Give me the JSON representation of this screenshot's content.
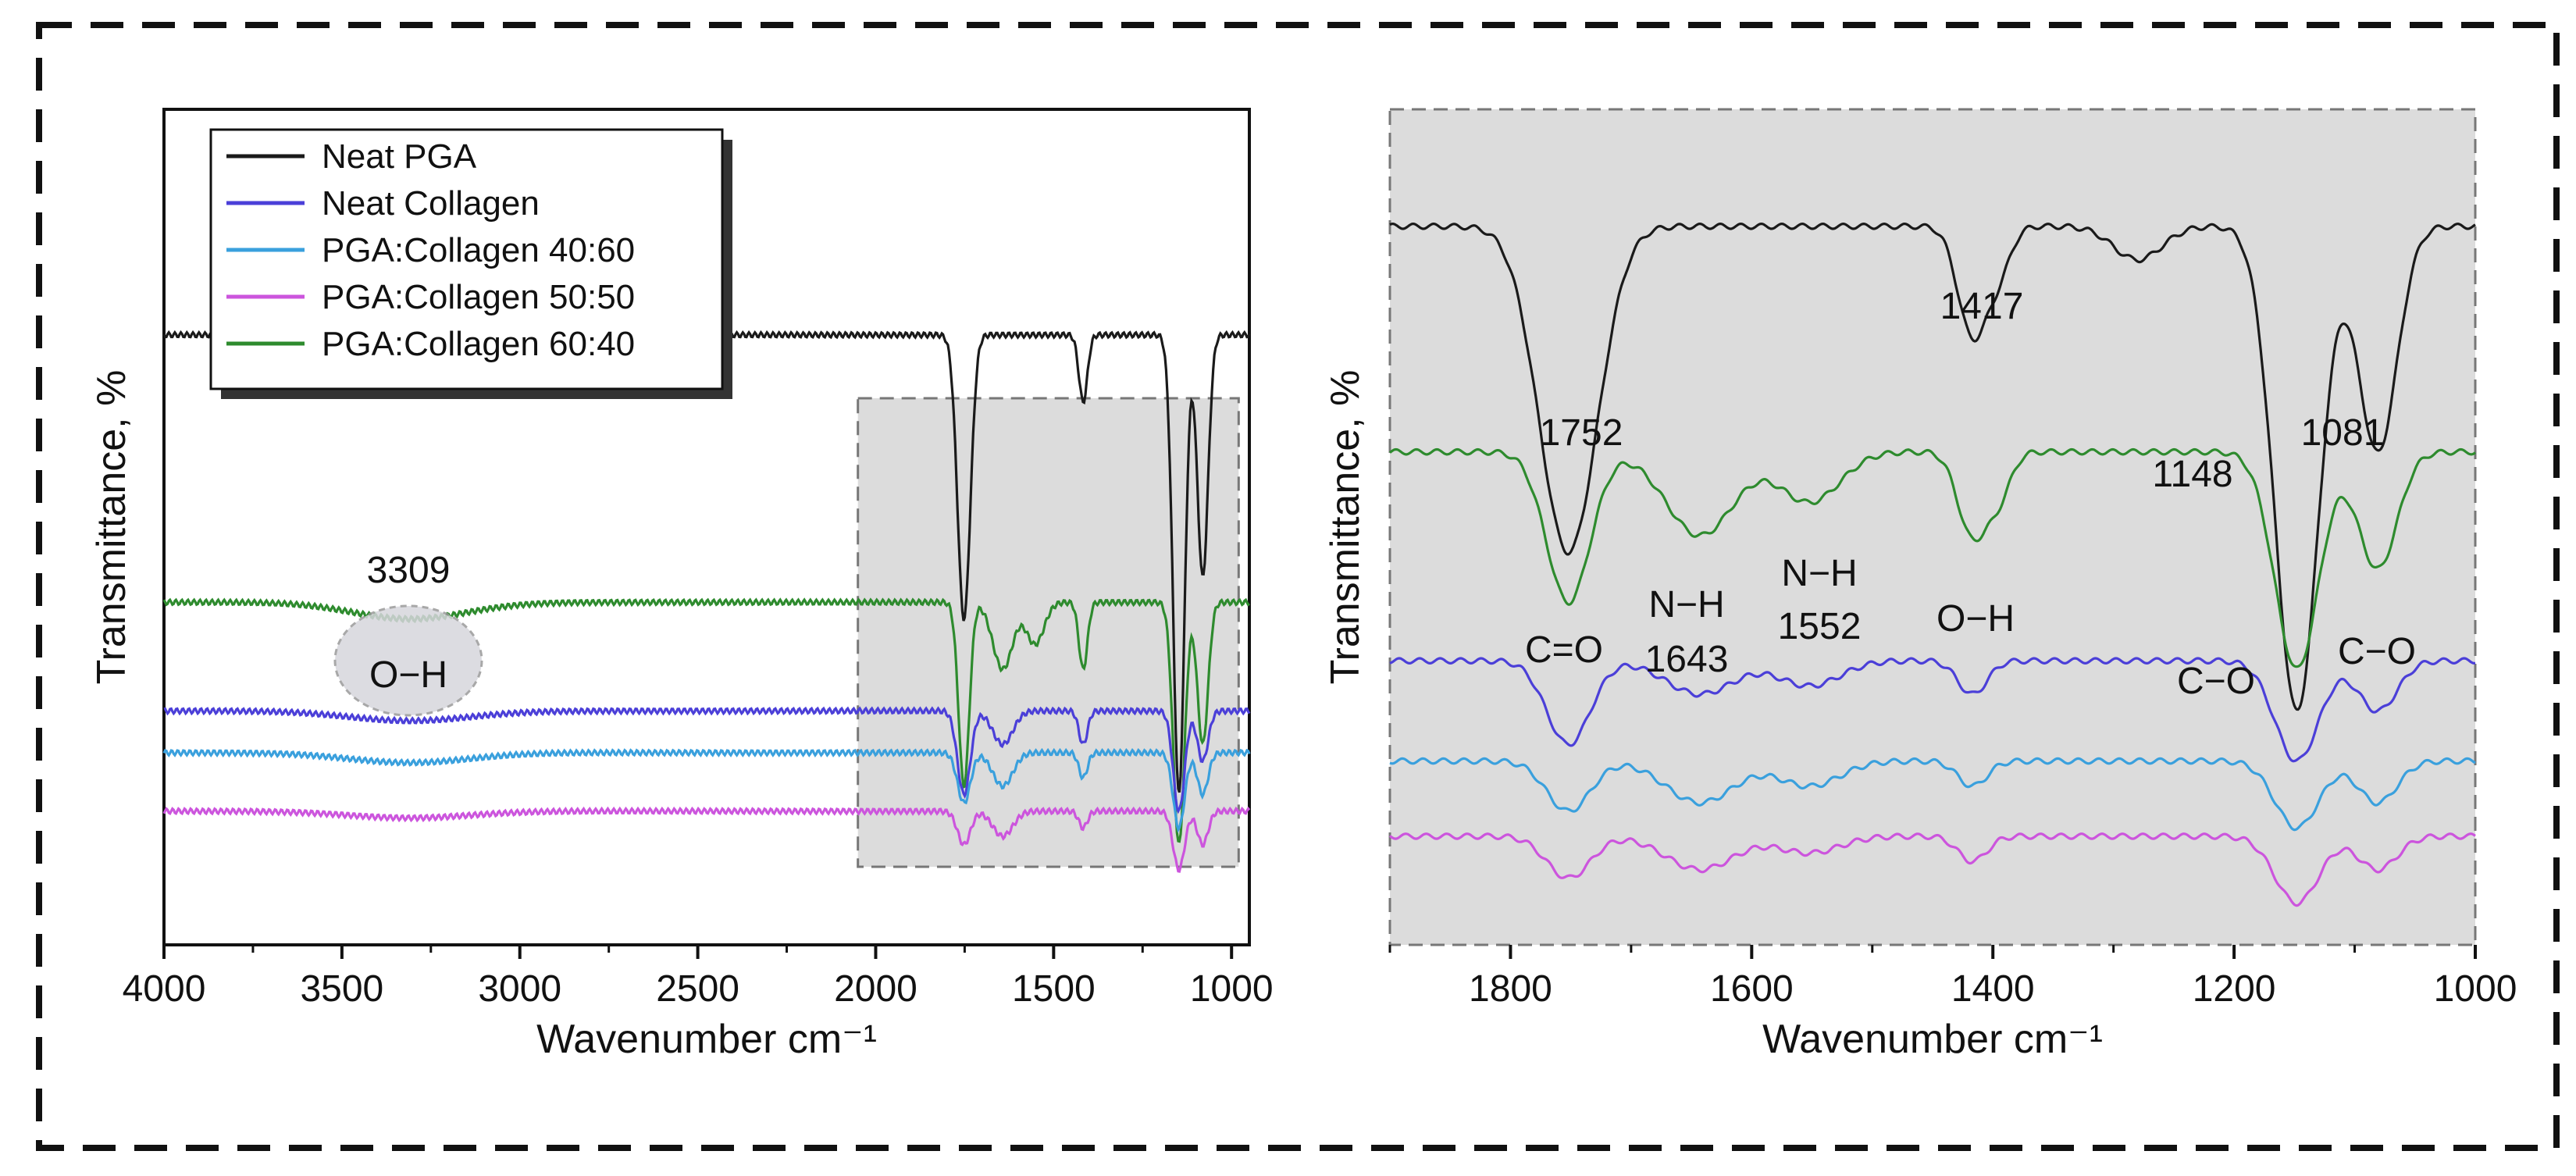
{
  "chart_data": [
    {
      "type": "line",
      "panel": "left",
      "xlabel": "Wavenumber cm⁻¹",
      "ylabel": "Transmittance, %",
      "xlim": [
        4000,
        950
      ],
      "x_ticks": [
        "4000",
        "3500",
        "3000",
        "2500",
        "2000",
        "1500",
        "1000"
      ],
      "x_tick_values": [
        4000,
        3500,
        3000,
        2500,
        2000,
        1500,
        1000
      ],
      "highlight_region": [
        2050,
        980
      ],
      "legend": [
        "Neat PGA",
        "Neat Collagen",
        "PGA:Collagen 40:60",
        "PGA:Collagen 50:50",
        "PGA:Collagen 60:40"
      ],
      "series": [
        {
          "name": "Neat PGA",
          "color": "#1a1a1a",
          "baseline": 0.27,
          "peaks": [
            [
              2950,
              0.01,
              35
            ],
            [
              1752,
              0.34,
              18
            ],
            [
              1417,
              0.08,
              12
            ],
            [
              1148,
              0.55,
              16
            ],
            [
              1081,
              0.29,
              15
            ]
          ]
        },
        {
          "name": "PGA:Collagen 60:40",
          "color": "#2e8b2e",
          "baseline": 0.59,
          "peaks": [
            [
              3309,
              0.02,
              160
            ],
            [
              1752,
              0.22,
              15
            ],
            [
              1643,
              0.08,
              28
            ],
            [
              1552,
              0.05,
              25
            ],
            [
              1417,
              0.08,
              12
            ],
            [
              1148,
              0.29,
              16
            ],
            [
              1081,
              0.17,
              15
            ]
          ]
        },
        {
          "name": "Neat Collagen",
          "color": "#4b3fd8",
          "baseline": 0.72,
          "peaks": [
            [
              3309,
              0.012,
              170
            ],
            [
              1752,
              0.1,
              18
            ],
            [
              1643,
              0.04,
              28
            ],
            [
              1417,
              0.04,
              12
            ],
            [
              1148,
              0.12,
              16
            ],
            [
              1081,
              0.06,
              15
            ]
          ]
        },
        {
          "name": "PGA:Collagen 40:60",
          "color": "#3aa0dd",
          "baseline": 0.77,
          "peaks": [
            [
              3309,
              0.012,
              170
            ],
            [
              1752,
              0.06,
              18
            ],
            [
              1643,
              0.04,
              28
            ],
            [
              1417,
              0.03,
              12
            ],
            [
              1148,
              0.09,
              16
            ],
            [
              1081,
              0.05,
              15
            ]
          ]
        },
        {
          "name": "PGA:Collagen 50:50",
          "color": "#cc55dd",
          "baseline": 0.84,
          "peaks": [
            [
              3309,
              0.008,
              170
            ],
            [
              1752,
              0.04,
              18
            ],
            [
              1643,
              0.03,
              28
            ],
            [
              1417,
              0.02,
              12
            ],
            [
              1148,
              0.07,
              16
            ],
            [
              1081,
              0.04,
              15
            ]
          ]
        }
      ],
      "annotations": {
        "peak_number": "3309",
        "peak_label": "O−H"
      }
    },
    {
      "type": "line",
      "panel": "right",
      "xlabel": "Wavenumber cm⁻¹",
      "ylabel": "Transmittance, %",
      "xlim": [
        1900,
        1000
      ],
      "x_ticks": [
        "1800",
        "1600",
        "1400",
        "1200",
        "1000"
      ],
      "x_tick_values": [
        1800,
        1600,
        1400,
        1200,
        1000
      ],
      "series": [
        {
          "name": "Neat PGA",
          "color": "#1a1a1a",
          "baseline": 0.14,
          "peaks": [
            [
              1752,
              0.39,
              24
            ],
            [
              1417,
              0.13,
              12
            ],
            [
              1395,
              0.05,
              10
            ],
            [
              1148,
              0.58,
              18
            ],
            [
              1081,
              0.27,
              16
            ],
            [
              1280,
              0.04,
              20
            ]
          ]
        },
        {
          "name": "PGA:Collagen 60:40",
          "color": "#2e8b2e",
          "baseline": 0.41,
          "peaks": [
            [
              1752,
              0.18,
              18
            ],
            [
              1643,
              0.1,
              28
            ],
            [
              1552,
              0.06,
              25
            ],
            [
              1417,
              0.1,
              12
            ],
            [
              1395,
              0.05,
              10
            ],
            [
              1148,
              0.26,
              18
            ],
            [
              1081,
              0.14,
              16
            ]
          ]
        },
        {
          "name": "Neat Collagen",
          "color": "#4b3fd8",
          "baseline": 0.66,
          "peaks": [
            [
              1752,
              0.1,
              18
            ],
            [
              1643,
              0.04,
              28
            ],
            [
              1552,
              0.03,
              25
            ],
            [
              1417,
              0.04,
              12
            ],
            [
              1148,
              0.12,
              18
            ],
            [
              1081,
              0.06,
              16
            ]
          ]
        },
        {
          "name": "PGA:Collagen 40:60",
          "color": "#3aa0dd",
          "baseline": 0.78,
          "peaks": [
            [
              1752,
              0.06,
              18
            ],
            [
              1643,
              0.05,
              28
            ],
            [
              1552,
              0.03,
              25
            ],
            [
              1417,
              0.03,
              12
            ],
            [
              1148,
              0.08,
              18
            ],
            [
              1081,
              0.05,
              16
            ]
          ]
        },
        {
          "name": "PGA:Collagen 50:50",
          "color": "#cc55dd",
          "baseline": 0.87,
          "peaks": [
            [
              1752,
              0.05,
              18
            ],
            [
              1643,
              0.04,
              28
            ],
            [
              1552,
              0.02,
              25
            ],
            [
              1417,
              0.03,
              12
            ],
            [
              1148,
              0.08,
              18
            ],
            [
              1081,
              0.04,
              16
            ]
          ]
        }
      ],
      "annotations": {
        "peaks": [
          "1752",
          "1417",
          "1148",
          "1081"
        ],
        "c_o_label": "C=O",
        "nh_label": "N−H",
        "nh_1643": "1643",
        "nh_1552": "1552",
        "oh_label": "O−H",
        "c_o_single_label": "C−O"
      }
    }
  ]
}
